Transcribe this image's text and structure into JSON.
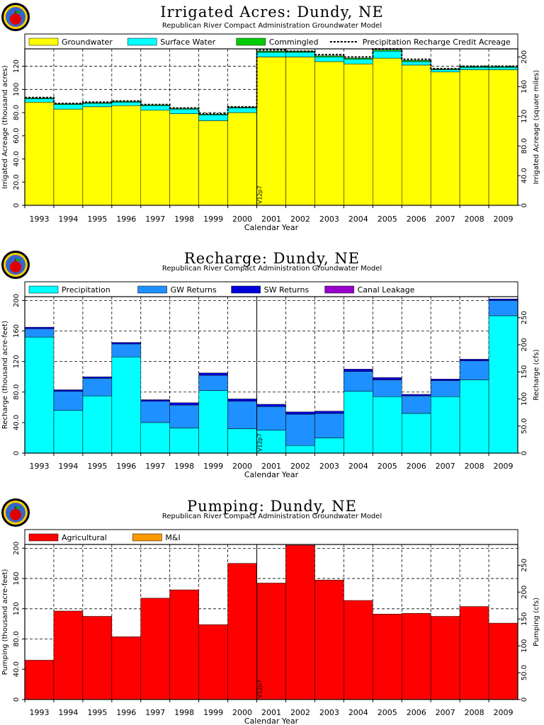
{
  "chart_data": [
    {
      "type": "bar",
      "title": "Irrigated Acres: Dundy, NE",
      "subtitle": "Republican River Compact Administration Groundwater Model",
      "xlabel": "Calendar Year",
      "ylabel": "Irrigated Acreage (thousand acres)",
      "ylabel_right": "Irrigated Acreage (square miles)",
      "marker": "V12p7",
      "ylim": [
        0,
        135
      ],
      "yticks": [
        "0",
        "20.0",
        "40.0",
        "60.0",
        "80.0",
        "100",
        "120"
      ],
      "ytick_values": [
        0,
        20,
        40,
        60,
        80,
        100,
        120
      ],
      "yticks_right": [
        "0",
        "40.0",
        "80.0",
        "120",
        "160",
        "200"
      ],
      "categories": [
        "1993",
        "1994",
        "1995",
        "1996",
        "1997",
        "1998",
        "1999",
        "2000",
        "2001",
        "2002",
        "2003",
        "2004",
        "2005",
        "2006",
        "2007",
        "2008",
        "2009"
      ],
      "series": [
        {
          "name": "Groundwater",
          "color": "#ffff00",
          "values": [
            89,
            83,
            85,
            86,
            82,
            79,
            73,
            80,
            128,
            128,
            124,
            122,
            127,
            121,
            115,
            117,
            117
          ]
        },
        {
          "name": "Surface Water",
          "color": "#00ffff",
          "values": [
            3,
            4,
            3,
            3,
            4,
            4,
            5,
            4,
            4,
            4,
            4,
            4,
            6,
            3,
            2,
            2,
            2
          ]
        },
        {
          "name": "Commingled",
          "color": "#00cc00",
          "values": [
            0.6,
            0.6,
            0.6,
            0.6,
            0.6,
            0.6,
            0.6,
            0.6,
            1,
            1,
            1,
            1,
            1,
            1,
            0.6,
            0.6,
            0.6
          ]
        }
      ],
      "line_series": {
        "name": "Precipitation Recharge Credit Acreage",
        "style": "dashed",
        "values": [
          93,
          88,
          89,
          90,
          87,
          84,
          79,
          85,
          134,
          133,
          130,
          128,
          135,
          126,
          118,
          120,
          120
        ]
      }
    },
    {
      "type": "bar",
      "title": "Recharge: Dundy, NE",
      "subtitle": "Republican River Compact Administration Groundwater Model",
      "xlabel": "Calendar Year",
      "ylabel": "Recharge (thousand acre-feet)",
      "ylabel_right": "Recharge (cfs)",
      "marker": "V12p7",
      "ylim": [
        0,
        205
      ],
      "yticks": [
        "0",
        "40.0",
        "80.0",
        "120",
        "160",
        "200"
      ],
      "ytick_values": [
        0,
        40,
        80,
        120,
        160,
        200
      ],
      "yticks_right": [
        "0",
        "50.0",
        "100",
        "150",
        "200",
        "250"
      ],
      "categories": [
        "1993",
        "1994",
        "1995",
        "1996",
        "1997",
        "1998",
        "1999",
        "2000",
        "2001",
        "2002",
        "2003",
        "2004",
        "2005",
        "2006",
        "2007",
        "2008",
        "2009"
      ],
      "series": [
        {
          "name": "Precipitation",
          "color": "#00ffff",
          "values": [
            152,
            56,
            75,
            126,
            40,
            33,
            82,
            32,
            30,
            10,
            20,
            81,
            74,
            52,
            74,
            96,
            180
          ]
        },
        {
          "name": "GW Returns",
          "color": "#1e90ff",
          "values": [
            11,
            25,
            23,
            17,
            28,
            30,
            20,
            36,
            31,
            41,
            32,
            26,
            22,
            23,
            21,
            25,
            20
          ]
        },
        {
          "name": "SW Returns",
          "color": "#0000dd",
          "values": [
            2,
            2,
            2,
            2,
            2,
            3,
            3,
            3,
            3,
            3,
            3,
            3,
            3,
            2,
            2,
            2,
            2
          ]
        },
        {
          "name": "Canal Leakage",
          "color": "#9900cc",
          "values": [
            0,
            0,
            0,
            0,
            0,
            0,
            0,
            0,
            0,
            0,
            0,
            0,
            0,
            0,
            0,
            0,
            0
          ]
        }
      ]
    },
    {
      "type": "bar",
      "title": "Pumping: Dundy, NE",
      "subtitle": "Republican River Compact Administration Groundwater Model",
      "xlabel": "Calendar Year",
      "ylabel": "Pumping (thousand acre-feet)",
      "ylabel_right": "Pumping (cfs)",
      "marker": "V12p7",
      "ylim": [
        0,
        205
      ],
      "yticks": [
        "0",
        "40.0",
        "80.0",
        "120",
        "160",
        "200"
      ],
      "ytick_values": [
        0,
        40,
        80,
        120,
        160,
        200
      ],
      "yticks_right": [
        "0",
        "50.0",
        "100",
        "150",
        "200",
        "250"
      ],
      "categories": [
        "1993",
        "1994",
        "1995",
        "1996",
        "1997",
        "1998",
        "1999",
        "2000",
        "2001",
        "2002",
        "2003",
        "2004",
        "2005",
        "2006",
        "2007",
        "2008",
        "2009"
      ],
      "series": [
        {
          "name": "Agricultural",
          "color": "#ff0000",
          "values": [
            52,
            117,
            110,
            83,
            134,
            145,
            99,
            180,
            154,
            204,
            158,
            131,
            113,
            114,
            110,
            123,
            101
          ]
        },
        {
          "name": "M&I",
          "color": "#ff9900",
          "values": [
            0,
            0,
            0,
            0,
            0,
            0,
            0,
            0,
            0,
            0,
            0,
            0,
            0,
            0,
            0,
            0,
            0
          ]
        }
      ]
    }
  ]
}
